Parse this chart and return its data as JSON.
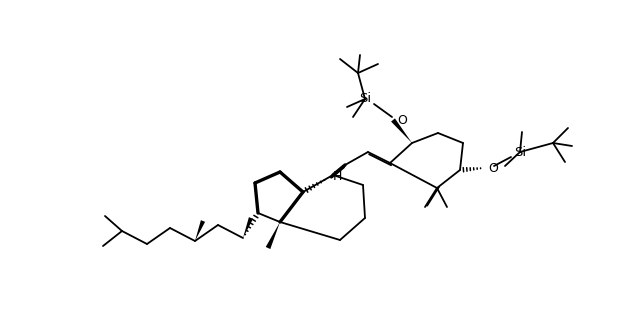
{
  "bg": "#ffffff",
  "lc": "#000000",
  "lw": 1.3,
  "blw": 2.4,
  "fs": 8.5,
  "fw": 6.2,
  "fh": 3.16,
  "dpi": 100,
  "Si_label": "Si",
  "O_label": "O",
  "H_label": "H"
}
